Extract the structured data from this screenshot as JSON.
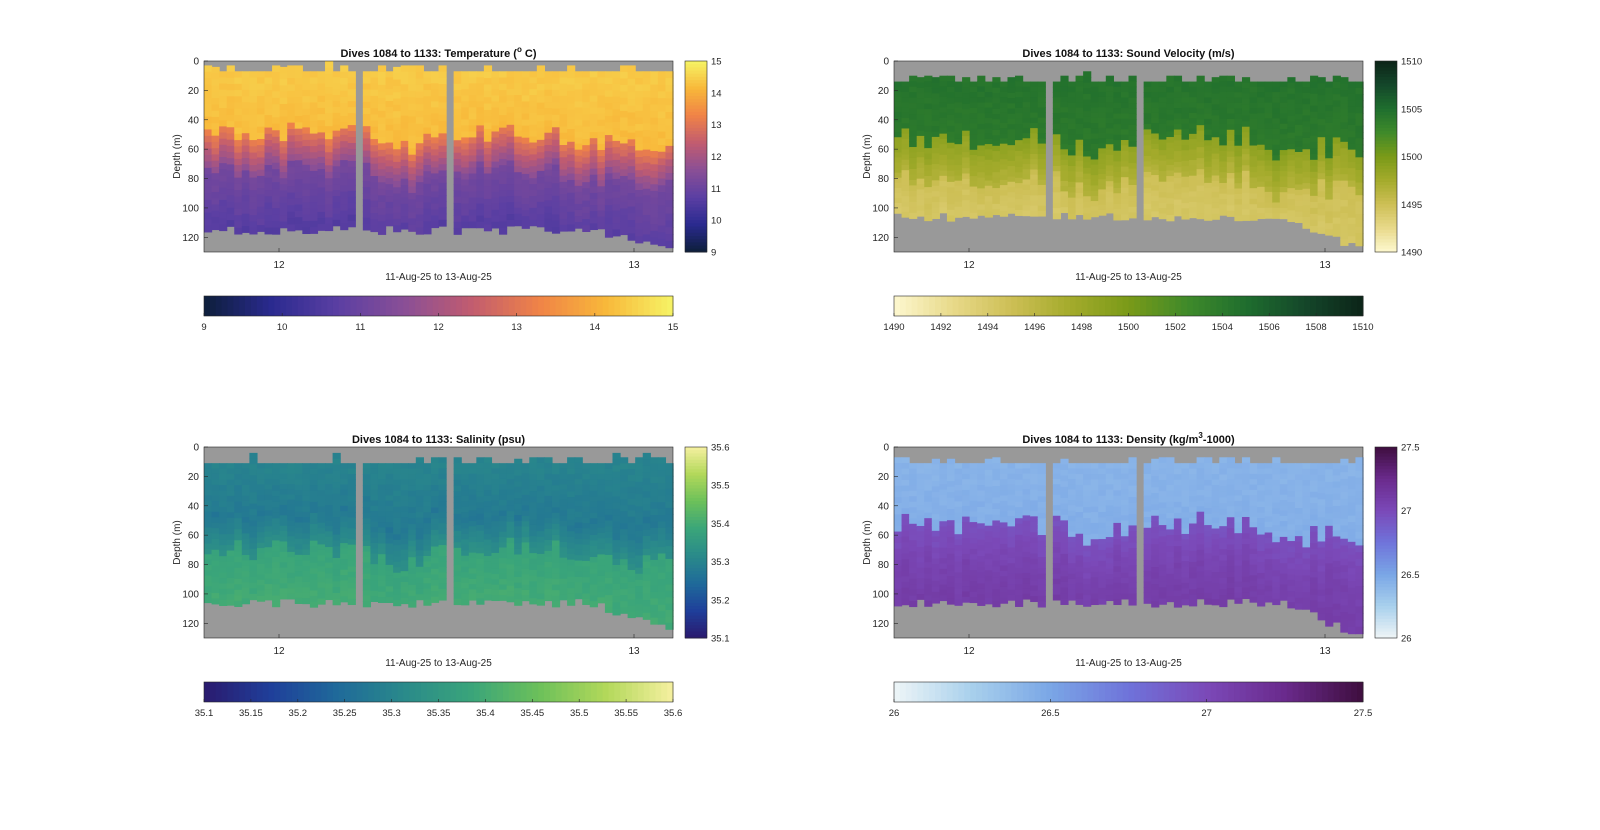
{
  "figure": {
    "background": "#ffffff",
    "mask_color": "#999999"
  },
  "chart_data": [
    {
      "type": "heatmap",
      "title_prefix": "Dives 1084 to 1133: Temperature (",
      "title_sup": "o",
      "title_suffix": " C)",
      "xlabel": "11-Aug-25 to 13-Aug-25",
      "ylabel": "Depth (m)",
      "x_ticks": [
        "12",
        "13"
      ],
      "ylim": [
        0,
        130
      ],
      "y_ticks": [
        0,
        20,
        40,
        60,
        80,
        100,
        120
      ],
      "clim": [
        9,
        15
      ],
      "cbar_ticks": [
        9,
        10,
        11,
        12,
        13,
        14,
        15
      ],
      "colormap": [
        "#0d1f3a",
        "#2a2a8f",
        "#5b3fa3",
        "#8a4f96",
        "#c25c6f",
        "#f08347",
        "#f8b83a",
        "#f6f466"
      ],
      "layers": [
        {
          "top": 7,
          "shallow": 14.4,
          "deep": 14.2
        },
        {
          "top": 50,
          "shallow": 13.2,
          "deep": 11.5
        },
        {
          "top": 75,
          "shallow": 11.2,
          "deep": 10.6
        }
      ],
      "top_mask": 7,
      "bottom_range": [
        112,
        127
      ]
    },
    {
      "type": "heatmap",
      "title_prefix": "Dives 1084 to 1133: Sound Velocity (m/s)",
      "title_sup": "",
      "title_suffix": "",
      "xlabel": "11-Aug-25 to 13-Aug-25",
      "ylabel": "Depth (m)",
      "x_ticks": [
        "12",
        "13"
      ],
      "ylim": [
        0,
        130
      ],
      "y_ticks": [
        0,
        20,
        40,
        60,
        80,
        100,
        120
      ],
      "clim": [
        1490,
        1510
      ],
      "cbar_ticks": [
        1490,
        1492,
        1494,
        1496,
        1498,
        1500,
        1502,
        1504,
        1506,
        1508,
        1510
      ],
      "colorbar_side_ticks": [
        1490,
        1495,
        1500,
        1505,
        1510
      ],
      "colormap": [
        "#fdf8cf",
        "#e8d98a",
        "#cdbf55",
        "#a4ab2c",
        "#7a9a18",
        "#3f8a2a",
        "#1f6e2e",
        "#14472a",
        "#0c2418"
      ],
      "layers": [
        {
          "top": 14,
          "shallow": 1504.5,
          "deep": 1504.0
        },
        {
          "top": 52,
          "shallow": 1499.0,
          "deep": 1496.5
        },
        {
          "top": 80,
          "shallow": 1495.0,
          "deep": 1494.2
        }
      ],
      "top_mask": 14,
      "bottom_range": [
        103,
        127
      ]
    },
    {
      "type": "heatmap",
      "title_prefix": "Dives 1084 to 1133: Salinity (psu)",
      "title_sup": "",
      "title_suffix": "",
      "xlabel": "11-Aug-25 to 13-Aug-25",
      "ylabel": "Depth (m)",
      "x_ticks": [
        "12",
        "13"
      ],
      "ylim": [
        0,
        130
      ],
      "y_ticks": [
        0,
        20,
        40,
        60,
        80,
        100,
        120
      ],
      "clim": [
        35.1,
        35.6
      ],
      "cbar_ticks": [
        35.1,
        35.15,
        35.2,
        35.25,
        35.3,
        35.35,
        35.4,
        35.45,
        35.5,
        35.55,
        35.6
      ],
      "colorbar_side_ticks": [
        35.1,
        35.2,
        35.3,
        35.4,
        35.5,
        35.6
      ],
      "colormap": [
        "#2a1a6e",
        "#1f3f9a",
        "#1f6a9a",
        "#2a8a8a",
        "#3aa57a",
        "#6cc05a",
        "#b2d85a",
        "#f6f0a0"
      ],
      "layers": [
        {
          "top": 11,
          "shallow": 35.3,
          "deep": 35.28
        },
        {
          "top": 45,
          "shallow": 35.27,
          "deep": 35.33
        },
        {
          "top": 70,
          "shallow": 35.38,
          "deep": 35.4
        }
      ],
      "top_mask": 11,
      "bottom_range": [
        103,
        124
      ]
    },
    {
      "type": "heatmap",
      "title_prefix": "Dives 1084 to 1133: Density (kg/m",
      "title_sup": "3",
      "title_suffix": "-1000)",
      "xlabel": "11-Aug-25 to 13-Aug-25",
      "ylabel": "Depth (m)",
      "x_ticks": [
        "12",
        "13"
      ],
      "ylim": [
        0,
        130
      ],
      "y_ticks": [
        0,
        20,
        40,
        60,
        80,
        100,
        120
      ],
      "clim": [
        26,
        27.5
      ],
      "cbar_ticks": [
        26,
        26.5,
        27,
        27.5
      ],
      "colormap": [
        "#eef5f7",
        "#a8d0ec",
        "#7aa6e6",
        "#6f73da",
        "#7b49b8",
        "#6a2a8c",
        "#3e0e3e"
      ],
      "layers": [
        {
          "top": 11,
          "shallow": 26.42,
          "deep": 26.45
        },
        {
          "top": 52,
          "shallow": 26.95,
          "deep": 27.05
        },
        {
          "top": 80,
          "shallow": 27.05,
          "deep": 27.1
        }
      ],
      "top_mask": 11,
      "bottom_range": [
        103,
        127
      ]
    }
  ]
}
